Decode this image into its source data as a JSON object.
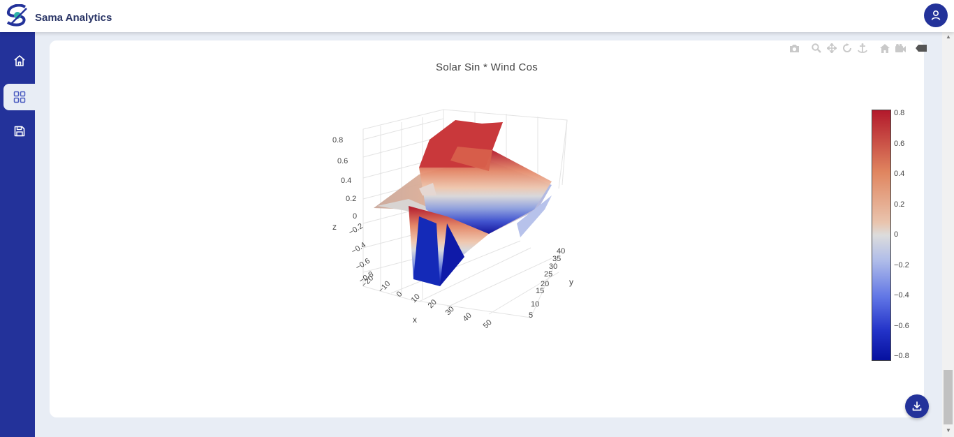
{
  "app": {
    "brand": "Sama Analytics"
  },
  "colors": {
    "primary": "#23329a",
    "background": "#e8edf5",
    "card": "#ffffff"
  },
  "sidebar": {
    "items": [
      {
        "icon": "home-icon"
      },
      {
        "icon": "dashboard-grid-icon",
        "active": true
      },
      {
        "icon": "save-icon"
      }
    ]
  },
  "modebar": {
    "buttons": [
      "camera-icon",
      "zoom-icon",
      "pan-icon",
      "orbit-rotation-icon",
      "turntable-rotation-icon",
      "reset-camera-icon",
      "last-saved-camera-icon",
      "plotly-logo-icon"
    ]
  },
  "chart_data": {
    "type": "surface",
    "title": "Solar Sin * Wind Cos",
    "axes": {
      "x": {
        "label": "x",
        "ticks": [
          "−20",
          "−10",
          "0",
          "10",
          "20",
          "30",
          "40",
          "50"
        ]
      },
      "y": {
        "label": "y",
        "ticks": [
          "5",
          "10",
          "15",
          "20",
          "25",
          "30",
          "35",
          "40"
        ]
      },
      "z": {
        "label": "z",
        "ticks": [
          "−0.8",
          "−0.6",
          "−0.4",
          "−0.2",
          "0",
          "0.2",
          "0.4",
          "0.6",
          "0.8"
        ]
      }
    },
    "colorbar": {
      "colorscale": "RdBu reversed",
      "ticks": [
        "0.8",
        "0.6",
        "0.4",
        "0.2",
        "0",
        "−0.2",
        "−0.4",
        "−0.6",
        "−0.8"
      ],
      "range": [
        -0.8,
        0.8
      ]
    }
  }
}
